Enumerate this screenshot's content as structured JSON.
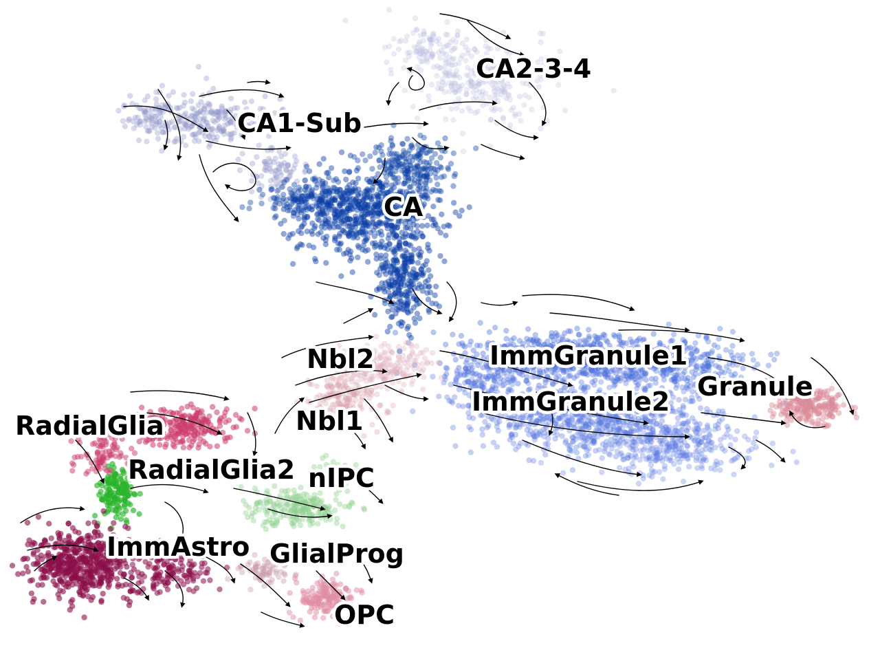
{
  "figure": {
    "type": "umap-velocity-stream-plot",
    "colors": {
      "CA": "#0b3fa6",
      "CA1-Sub": "#8f96c8",
      "CA2-3-4": "#b9bedd",
      "ImmGranule1": "#4a6fdc",
      "ImmGranule2": "#5878e0",
      "Granule": "#d98a96",
      "Nbl1": "#d9a7b2",
      "Nbl2": "#e0b3bc",
      "nIPC": "#8fd08f",
      "RadialGlia": "#cc3d6e",
      "RadialGlia2": "#2ab32a",
      "ImmAstro": "#8a0f4a",
      "GlialProg": "#c99aa8",
      "OPC": "#e08da4"
    },
    "clusters": [
      {
        "name": "CA1-Sub",
        "label": "CA1-Sub"
      },
      {
        "name": "CA2-3-4",
        "label": "CA2-3-4"
      },
      {
        "name": "CA",
        "label": "CA"
      },
      {
        "name": "Nbl2",
        "label": "Nbl2"
      },
      {
        "name": "ImmGranule1",
        "label": "ImmGranule1"
      },
      {
        "name": "Granule",
        "label": "Granule"
      },
      {
        "name": "ImmGranule2",
        "label": "ImmGranule2"
      },
      {
        "name": "Nbl1",
        "label": "Nbl1"
      },
      {
        "name": "RadialGlia",
        "label": "RadialGlia"
      },
      {
        "name": "RadialGlia2",
        "label": "RadialGlia2"
      },
      {
        "name": "nIPC",
        "label": "nIPC"
      },
      {
        "name": "ImmAstro",
        "label": "ImmAstro"
      },
      {
        "name": "GlialProg",
        "label": "GlialProg"
      },
      {
        "name": "OPC",
        "label": "OPC"
      }
    ]
  }
}
